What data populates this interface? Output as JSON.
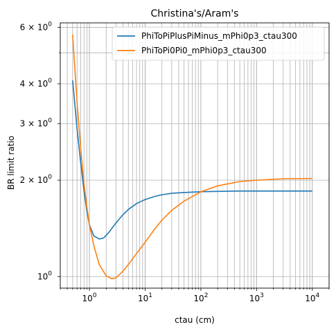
{
  "chart_data": {
    "type": "line",
    "title": "Christina's/Aram's",
    "xlabel": "ctau (cm)",
    "ylabel": "BR limit ratio",
    "xscale": "log",
    "yscale": "log",
    "xlim": [
      0.3,
      20000
    ],
    "ylim": [
      0.92,
      6.2
    ],
    "grid": "major and minor",
    "legend_position": "top-right",
    "x_ticks": [
      {
        "value": 1,
        "base": "10",
        "exp": "0"
      },
      {
        "value": 10,
        "base": "10",
        "exp": "1"
      },
      {
        "value": 100,
        "base": "10",
        "exp": "2"
      },
      {
        "value": 1000,
        "base": "10",
        "exp": "3"
      },
      {
        "value": 10000,
        "base": "10",
        "exp": "4"
      }
    ],
    "y_ticks": [
      {
        "value": 1,
        "mant": "10",
        "exp": "0"
      },
      {
        "value": 2,
        "mant": "2 × 10",
        "exp": "0"
      },
      {
        "value": 3,
        "mant": "3 × 10",
        "exp": "0"
      },
      {
        "value": 4,
        "mant": "4 × 10",
        "exp": "0"
      },
      {
        "value": 6,
        "mant": "6 × 10",
        "exp": "0"
      }
    ],
    "series": [
      {
        "name": "PhiToPiPlusPiMinus_mPhi0p3_ctau300",
        "color": "#1f77b4",
        "x": [
          0.5,
          0.6,
          0.7,
          0.8,
          0.9,
          1.0,
          1.2,
          1.5,
          1.8,
          2.2,
          3,
          4,
          5,
          7,
          10,
          15,
          20,
          30,
          50,
          100,
          200,
          500,
          1000,
          3000,
          10000
        ],
        "y": [
          4.1,
          2.9,
          2.25,
          1.85,
          1.6,
          1.45,
          1.34,
          1.31,
          1.32,
          1.37,
          1.47,
          1.56,
          1.62,
          1.69,
          1.74,
          1.78,
          1.8,
          1.82,
          1.83,
          1.84,
          1.845,
          1.85,
          1.85,
          1.85,
          1.85
        ]
      },
      {
        "name": "PhiToPi0Pi0_mPhi0p3_ctau300",
        "color": "#ff7f0e",
        "x": [
          0.5,
          0.6,
          0.7,
          0.8,
          0.9,
          1.0,
          1.2,
          1.5,
          2.0,
          2.5,
          3.0,
          4.0,
          5.0,
          7,
          10,
          15,
          20,
          30,
          50,
          100,
          200,
          500,
          1000,
          3000,
          10000
        ],
        "y": [
          5.7,
          3.5,
          2.5,
          1.95,
          1.65,
          1.45,
          1.25,
          1.09,
          1.005,
          0.985,
          0.99,
          1.04,
          1.09,
          1.18,
          1.28,
          1.41,
          1.5,
          1.61,
          1.72,
          1.84,
          1.92,
          1.98,
          2.0,
          2.02,
          2.025
        ]
      }
    ]
  }
}
